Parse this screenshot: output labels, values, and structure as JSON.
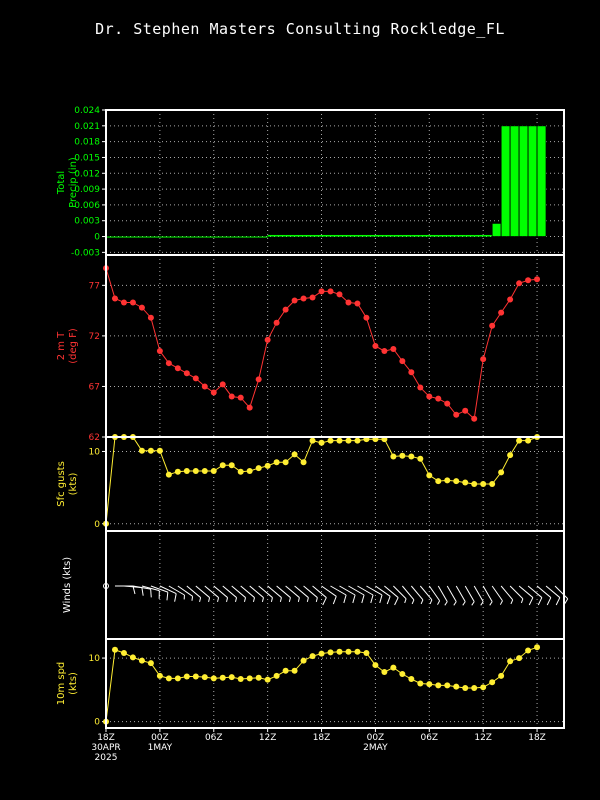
{
  "title": "Dr. Stephen Masters Consulting   Rockledge_FL",
  "colors": {
    "green": "#00ff00",
    "red": "#ff3333",
    "yellow": "#ffee33",
    "white": "#ffffff"
  },
  "x_axis": {
    "range": [
      0,
      51
    ],
    "ticks": [
      {
        "x": 0,
        "lines": [
          "18Z",
          "30APR",
          "2025"
        ]
      },
      {
        "x": 6,
        "lines": [
          "00Z",
          "1MAY"
        ]
      },
      {
        "x": 12,
        "lines": [
          "06Z"
        ]
      },
      {
        "x": 18,
        "lines": [
          "12Z"
        ]
      },
      {
        "x": 24,
        "lines": [
          "18Z"
        ]
      },
      {
        "x": 30,
        "lines": [
          "00Z",
          "2MAY"
        ]
      },
      {
        "x": 36,
        "lines": [
          "06Z"
        ]
      },
      {
        "x": 42,
        "lines": [
          "12Z"
        ]
      },
      {
        "x": 48,
        "lines": [
          "18Z"
        ]
      }
    ]
  },
  "chart_data": [
    {
      "type": "bar",
      "panel": "precip",
      "ylabel_lines": [
        "Total",
        "Precip (in)"
      ],
      "ylim": [
        -0.0035,
        0.024
      ],
      "yticks": [
        "-0.003",
        "0",
        "0.003",
        "0.006",
        "0.009",
        "0.012",
        "0.015",
        "0.018",
        "0.021",
        "0.024"
      ],
      "x": [
        0,
        1,
        2,
        3,
        4,
        5,
        6,
        7,
        8,
        9,
        10,
        11,
        12,
        13,
        14,
        15,
        16,
        17,
        18,
        19,
        20,
        21,
        22,
        23,
        24,
        25,
        26,
        27,
        28,
        29,
        30,
        31,
        32,
        33,
        34,
        35,
        36,
        37,
        38,
        39,
        40,
        41,
        42,
        43,
        44,
        45,
        46,
        47,
        48
      ],
      "values": [
        0,
        0,
        0,
        0,
        0,
        0,
        0,
        0,
        0,
        0,
        0,
        0,
        0,
        0,
        0,
        0,
        0,
        0,
        0.0003,
        0.0003,
        0.0003,
        0.0003,
        0.0003,
        0.0003,
        0.0003,
        0.0003,
        0.0003,
        0.0003,
        0.0003,
        0.0003,
        0.0003,
        0.0003,
        0.0003,
        0.0003,
        0.0003,
        0.0003,
        0.0003,
        0.0003,
        0.0003,
        0.0003,
        0.0003,
        0.0003,
        0.0003,
        0.0025,
        0.021,
        0.021,
        0.021,
        0.021,
        0.021
      ]
    },
    {
      "type": "line",
      "panel": "temp",
      "ylabel_lines": [
        "2 m T",
        "(deg F)"
      ],
      "ylim": [
        62,
        80
      ],
      "yticks": [
        "62",
        "67",
        "72",
        "77"
      ],
      "x": [
        0,
        1,
        2,
        3,
        4,
        5,
        6,
        7,
        8,
        9,
        10,
        11,
        12,
        13,
        14,
        15,
        16,
        17,
        18,
        19,
        20,
        21,
        22,
        23,
        24,
        25,
        26,
        27,
        28,
        29,
        30,
        31,
        32,
        33,
        34,
        35,
        36,
        37,
        38,
        39,
        40,
        41,
        42,
        43,
        44,
        45,
        46,
        47,
        48
      ],
      "values": [
        78.7,
        75.7,
        75.3,
        75.3,
        74.8,
        73.8,
        70.5,
        69.3,
        68.8,
        68.3,
        67.8,
        67.0,
        66.4,
        67.2,
        66.0,
        65.9,
        64.9,
        67.7,
        71.6,
        73.3,
        74.6,
        75.5,
        75.7,
        75.8,
        76.4,
        76.4,
        76.1,
        75.3,
        75.2,
        73.8,
        71.0,
        70.5,
        70.7,
        69.5,
        68.4,
        66.9,
        66.0,
        65.8,
        65.3,
        64.2,
        64.6,
        63.8,
        69.7,
        73.0,
        74.3,
        75.6,
        77.2,
        77.5,
        77.6
      ]
    },
    {
      "type": "line",
      "panel": "gusts",
      "ylabel_lines": [
        "Sfc gusts",
        "(kts)"
      ],
      "ylim": [
        -1,
        12
      ],
      "yticks": [
        "0",
        "10"
      ],
      "x": [
        0,
        1,
        2,
        3,
        4,
        5,
        6,
        7,
        8,
        9,
        10,
        11,
        12,
        13,
        14,
        15,
        16,
        17,
        18,
        19,
        20,
        21,
        22,
        23,
        24,
        25,
        26,
        27,
        28,
        29,
        30,
        31,
        32,
        33,
        34,
        35,
        36,
        37,
        38,
        39,
        40,
        41,
        42,
        43,
        44,
        45,
        46,
        47,
        48
      ],
      "values": [
        0,
        12,
        12,
        12,
        10.1,
        10.1,
        10.1,
        6.8,
        7.2,
        7.3,
        7.3,
        7.3,
        7.3,
        8.1,
        8.1,
        7.2,
        7.3,
        7.7,
        8.0,
        8.5,
        8.5,
        9.6,
        8.5,
        11.5,
        11.2,
        11.5,
        11.5,
        11.5,
        11.5,
        11.7,
        11.7,
        11.7,
        9.3,
        9.4,
        9.3,
        9.0,
        6.7,
        5.9,
        6.0,
        5.9,
        5.7,
        5.5,
        5.5,
        5.5,
        7.1,
        9.5,
        11.5,
        11.5,
        12
      ]
    },
    {
      "type": "table",
      "panel": "winds",
      "ylabel_lines": [
        "Winds (kts)"
      ],
      "x": [
        0,
        1,
        2,
        3,
        4,
        5,
        6,
        7,
        8,
        9,
        10,
        11,
        12,
        13,
        14,
        15,
        16,
        17,
        18,
        19,
        20,
        21,
        22,
        23,
        24,
        25,
        26,
        27,
        28,
        29,
        30,
        31,
        32,
        33,
        34,
        35,
        36,
        37,
        38,
        39,
        40,
        41,
        42,
        43,
        44,
        45,
        46,
        47,
        48,
        49,
        50
      ],
      "speed": [
        0,
        11,
        11,
        11,
        10,
        10,
        10,
        7,
        7,
        7,
        7,
        7,
        7,
        7,
        7,
        7,
        7,
        7,
        7,
        8,
        8,
        8,
        8,
        10,
        11,
        11,
        11,
        11,
        11,
        11,
        11,
        10,
        8,
        8,
        8,
        7,
        6,
        6,
        6,
        5,
        5,
        5,
        5,
        5,
        6,
        7,
        10,
        10,
        11,
        12,
        12
      ],
      "direction_deg": [
        0,
        90,
        95,
        100,
        105,
        110,
        115,
        120,
        125,
        130,
        130,
        130,
        130,
        130,
        130,
        130,
        130,
        130,
        130,
        130,
        130,
        130,
        130,
        130,
        125,
        120,
        120,
        120,
        120,
        120,
        125,
        130,
        135,
        140,
        140,
        140,
        145,
        150,
        150,
        150,
        150,
        150,
        150,
        145,
        140,
        135,
        130,
        130,
        130,
        130,
        135
      ]
    },
    {
      "type": "line",
      "panel": "wspd",
      "ylabel_lines": [
        "10m spd",
        "(kts)"
      ],
      "ylim": [
        -1,
        13
      ],
      "yticks": [
        "0",
        "10"
      ],
      "x": [
        0,
        1,
        2,
        3,
        4,
        5,
        6,
        7,
        8,
        9,
        10,
        11,
        12,
        13,
        14,
        15,
        16,
        17,
        18,
        19,
        20,
        21,
        22,
        23,
        24,
        25,
        26,
        27,
        28,
        29,
        30,
        31,
        32,
        33,
        34,
        35,
        36,
        37,
        38,
        39,
        40,
        41,
        42,
        43,
        44,
        45,
        46,
        47,
        48
      ],
      "values": [
        0,
        11.3,
        10.8,
        10.1,
        9.6,
        9.2,
        7.2,
        6.8,
        6.8,
        7.1,
        7.1,
        7.0,
        6.8,
        6.9,
        7.0,
        6.7,
        6.8,
        6.9,
        6.6,
        7.2,
        8.0,
        8.0,
        9.6,
        10.3,
        10.7,
        10.9,
        11.0,
        11.0,
        11.0,
        10.8,
        8.9,
        7.8,
        8.5,
        7.5,
        6.7,
        6.0,
        5.9,
        5.7,
        5.7,
        5.5,
        5.3,
        5.3,
        5.4,
        6.2,
        7.2,
        9.5,
        10.0,
        11.2,
        11.7
      ]
    }
  ]
}
